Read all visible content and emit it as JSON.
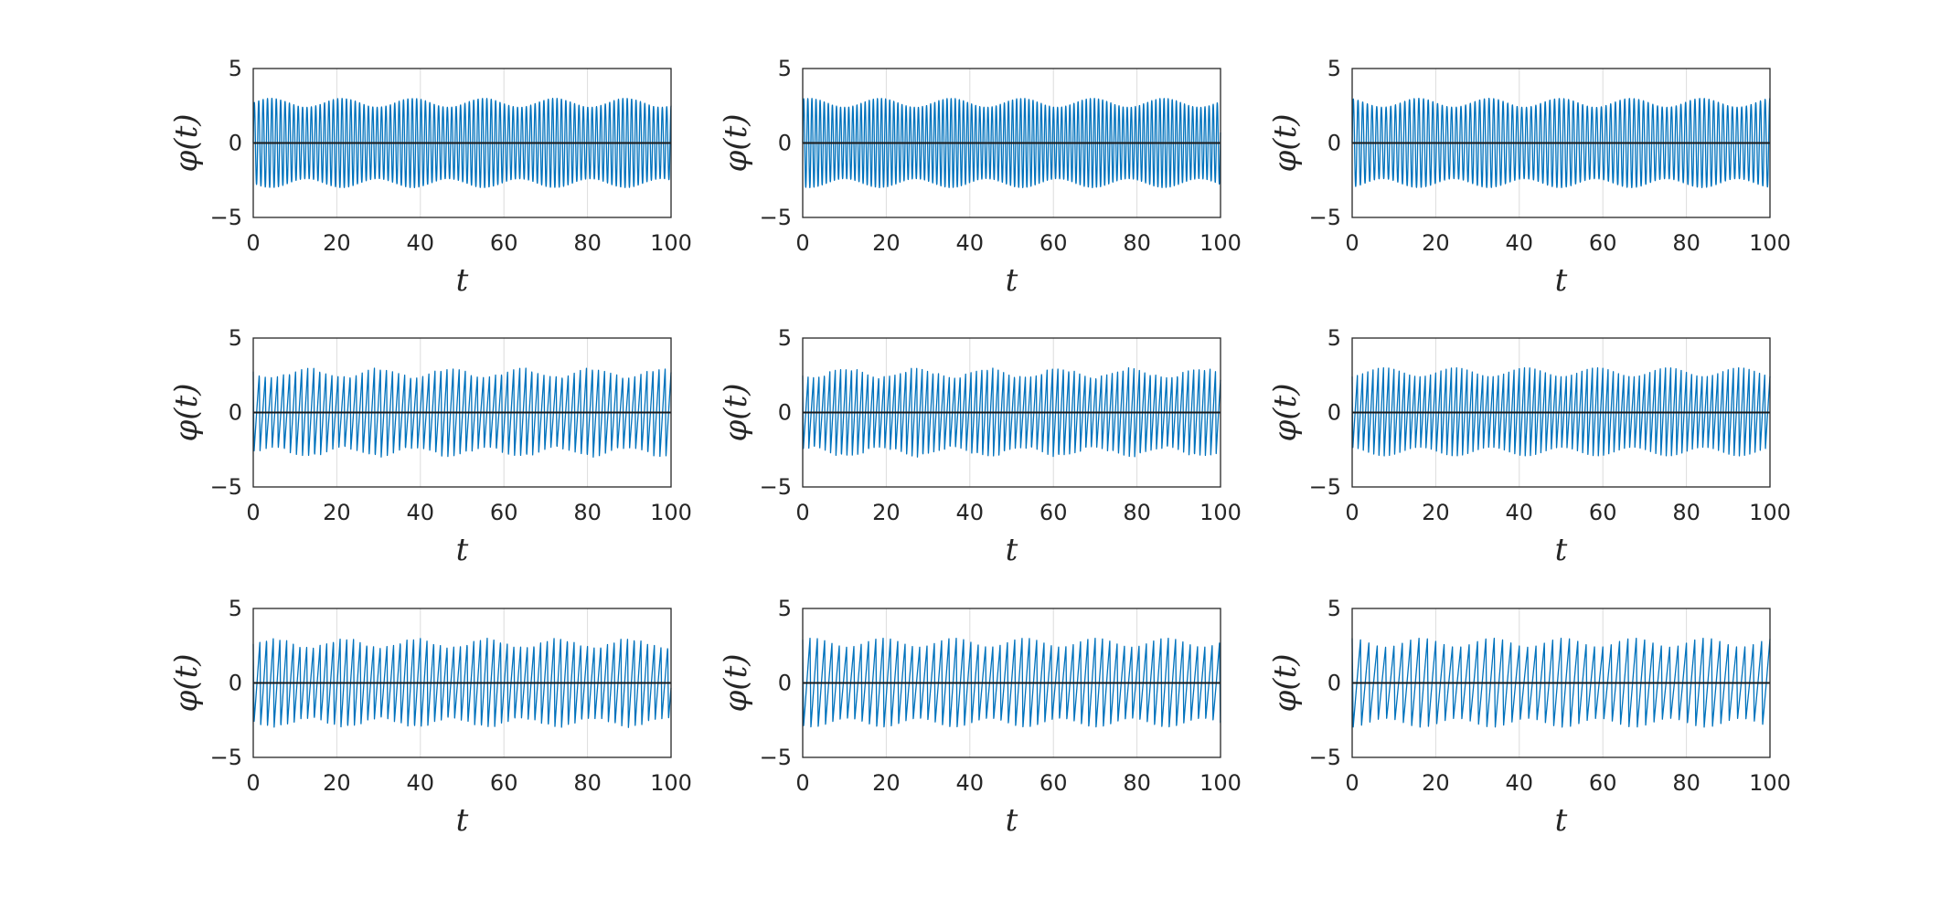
{
  "colors": {
    "series": "#0072BD",
    "zero_line": "#1a1a1a",
    "axes": "#262626",
    "grid": "#dcdcdc"
  },
  "chart_data": [
    {
      "type": "line",
      "xlabel": "t",
      "ylabel": "φ(t)",
      "xlim": [
        0,
        100
      ],
      "ylim": [
        -5,
        5
      ],
      "xticks": [
        "0",
        "20",
        "40",
        "60",
        "80",
        "100"
      ],
      "yticks": [
        "5",
        "0",
        "-5"
      ],
      "grid": "vertical",
      "series": [
        {
          "amplitude": 3.0,
          "period": 1.05,
          "wave": "oscillation",
          "mean": 0
        }
      ]
    },
    {
      "type": "line",
      "xlabel": "t",
      "ylabel": "φ(t)",
      "xlim": [
        0,
        100
      ],
      "ylim": [
        -5,
        5
      ],
      "xticks": [
        "0",
        "20",
        "40",
        "60",
        "80",
        "100"
      ],
      "yticks": [
        "5",
        "0",
        "-5"
      ],
      "grid": "vertical",
      "series": [
        {
          "amplitude": 3.0,
          "period": 0.98,
          "wave": "oscillation",
          "mean": 0
        }
      ]
    },
    {
      "type": "line",
      "xlabel": "t",
      "ylabel": "φ(t)",
      "xlim": [
        0,
        100
      ],
      "ylim": [
        -5,
        5
      ],
      "xticks": [
        "0",
        "20",
        "40",
        "60",
        "80",
        "100"
      ],
      "yticks": [
        "5",
        "0",
        "-5"
      ],
      "grid": "vertical",
      "series": [
        {
          "amplitude": 3.0,
          "period": 1.12,
          "wave": "oscillation",
          "mean": 0
        }
      ]
    },
    {
      "type": "line",
      "xlabel": "t",
      "ylabel": "φ(t)",
      "xlim": [
        0,
        100
      ],
      "ylim": [
        -5,
        5
      ],
      "xticks": [
        "0",
        "20",
        "40",
        "60",
        "80",
        "100"
      ],
      "yticks": [
        "5",
        "0",
        "-5"
      ],
      "grid": "vertical",
      "series": [
        {
          "amplitude": 3.0,
          "period": 1.45,
          "wave": "sawtooth",
          "mean": 0
        }
      ]
    },
    {
      "type": "line",
      "xlabel": "t",
      "ylabel": "φ(t)",
      "xlim": [
        0,
        100
      ],
      "ylim": [
        -5,
        5
      ],
      "xticks": [
        "0",
        "20",
        "40",
        "60",
        "80",
        "100"
      ],
      "yticks": [
        "5",
        "0",
        "-5"
      ],
      "grid": "vertical",
      "series": [
        {
          "amplitude": 3.0,
          "period": 1.3,
          "wave": "sawtooth",
          "mean": 0
        }
      ]
    },
    {
      "type": "line",
      "xlabel": "t",
      "ylabel": "φ(t)",
      "xlim": [
        0,
        100
      ],
      "ylim": [
        -5,
        5
      ],
      "xticks": [
        "0",
        "20",
        "40",
        "60",
        "80",
        "100"
      ],
      "yticks": [
        "5",
        "0",
        "-5"
      ],
      "grid": "vertical",
      "series": [
        {
          "amplitude": 3.0,
          "period": 1.25,
          "wave": "sawtooth",
          "mean": 0
        }
      ]
    },
    {
      "type": "line",
      "xlabel": "t",
      "ylabel": "φ(t)",
      "xlim": [
        0,
        100
      ],
      "ylim": [
        -5,
        5
      ],
      "xticks": [
        "0",
        "20",
        "40",
        "60",
        "80",
        "100"
      ],
      "yticks": [
        "5",
        "0",
        "-5"
      ],
      "grid": "vertical",
      "series": [
        {
          "amplitude": 3.0,
          "period": 1.6,
          "wave": "sawtooth",
          "mean": 0
        }
      ]
    },
    {
      "type": "line",
      "xlabel": "t",
      "ylabel": "φ(t)",
      "xlim": [
        0,
        100
      ],
      "ylim": [
        -5,
        5
      ],
      "xticks": [
        "0",
        "20",
        "40",
        "60",
        "80",
        "100"
      ],
      "yticks": [
        "5",
        "0",
        "-5"
      ],
      "grid": "vertical",
      "series": [
        {
          "amplitude": 3.0,
          "period": 1.75,
          "wave": "sawtooth",
          "mean": 0
        }
      ]
    },
    {
      "type": "line",
      "xlabel": "t",
      "ylabel": "φ(t)",
      "xlim": [
        0,
        100
      ],
      "ylim": [
        -5,
        5
      ],
      "xticks": [
        "0",
        "20",
        "40",
        "60",
        "80",
        "100"
      ],
      "yticks": [
        "5",
        "0",
        "-5"
      ],
      "grid": "vertical",
      "series": [
        {
          "amplitude": 3.0,
          "period": 2.0,
          "wave": "sawtooth",
          "mean": 0
        }
      ]
    }
  ]
}
